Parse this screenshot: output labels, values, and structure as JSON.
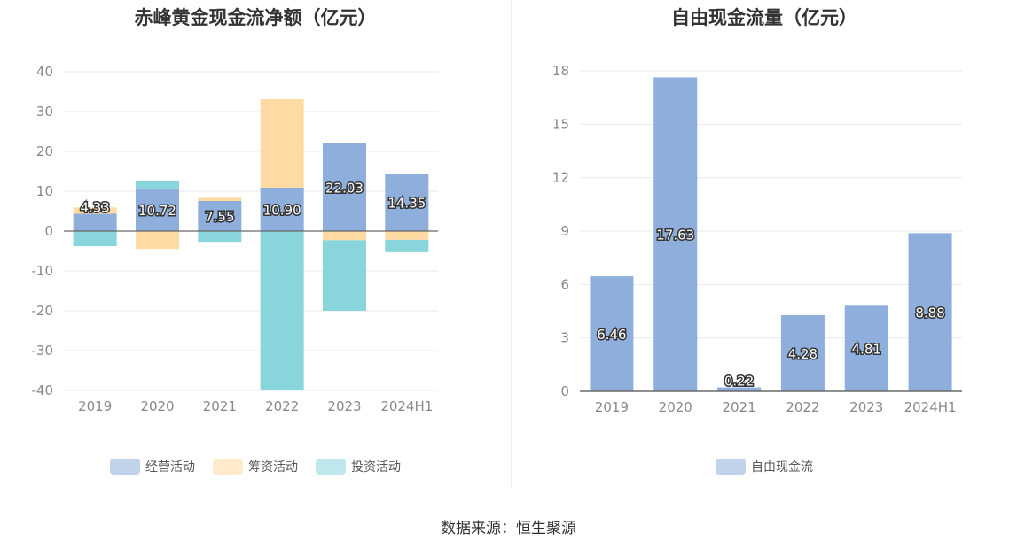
{
  "footer": {
    "source": "数据来源：恒生聚源"
  },
  "chart_data": [
    {
      "type": "bar",
      "stacked": true,
      "title": "赤峰黄金现金流净额（亿元）",
      "categories": [
        "2019",
        "2020",
        "2021",
        "2022",
        "2023",
        "2024H1"
      ],
      "series": [
        {
          "name": "经营活动",
          "color": "#8eaedb",
          "values": [
            4.33,
            10.72,
            7.55,
            10.9,
            22.03,
            14.35
          ]
        },
        {
          "name": "筹资活动",
          "color": "#ffdba3",
          "values": [
            1.6,
            -4.5,
            0.8,
            22.2,
            -2.3,
            -2.2
          ]
        },
        {
          "name": "投资活动",
          "color": "#88d5db",
          "values": [
            -3.8,
            1.8,
            -2.7,
            -40,
            -17.7,
            -3.1
          ]
        }
      ],
      "data_labels_series": "经营活动",
      "data_labels": [
        "4.33",
        "10.72",
        "7.55",
        "10.90",
        "22.03",
        "14.35"
      ],
      "ylim": [
        -40,
        40
      ],
      "yticks": [
        40,
        30,
        20,
        10,
        0,
        -10,
        -20,
        -30,
        -40
      ],
      "grid": true,
      "legend": "bottom"
    },
    {
      "type": "bar",
      "title": "自由现金流量（亿元）",
      "categories": [
        "2019",
        "2020",
        "2021",
        "2022",
        "2023",
        "2024H1"
      ],
      "series": [
        {
          "name": "自由现金流",
          "color": "#8eaedb",
          "values": [
            6.46,
            17.63,
            0.22,
            4.28,
            4.81,
            8.88
          ]
        }
      ],
      "data_labels": [
        "6.46",
        "17.63",
        "0.22",
        "4.28",
        "4.81",
        "8.88"
      ],
      "ylim": [
        0,
        18
      ],
      "yticks": [
        18,
        15,
        12,
        9,
        6,
        3,
        0
      ],
      "grid": true,
      "legend": "bottom"
    }
  ]
}
